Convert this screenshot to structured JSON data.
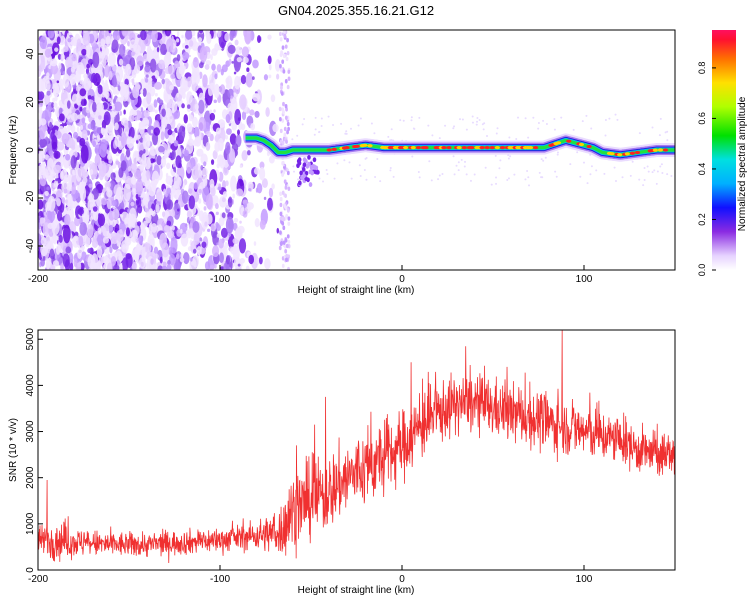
{
  "title": "GN04.2025.355.16.21.G12",
  "chart_data": [
    {
      "type": "heatmap",
      "xlabel": "Height of straight line (km)",
      "ylabel": "Frequency (Hz)",
      "xlim": [
        -200,
        150
      ],
      "ylim": [
        -50,
        50
      ],
      "xticks": [
        -200,
        -100,
        0,
        100
      ],
      "yticks": [
        -40,
        -20,
        0,
        20,
        40
      ],
      "colorbar_label": "Normalized spectral amplitude",
      "colorbar_ticks": [
        "0.0",
        "0.2",
        "0.4",
        "0.6",
        "0.8"
      ],
      "colorbar_range": [
        0,
        0.95
      ],
      "noise_region": {
        "x": [
          -200,
          -65
        ],
        "y": [
          -50,
          50
        ]
      },
      "ridge": {
        "x": [
          -86,
          -80,
          -76,
          -72,
          -68,
          -64,
          -60,
          -55,
          -50,
          -40,
          -30,
          -20,
          -10,
          0,
          10,
          20,
          30,
          40,
          50,
          60,
          70,
          78,
          82,
          86,
          90,
          95,
          100,
          105,
          110,
          120,
          130,
          140,
          150
        ],
        "freq": [
          5,
          5,
          4,
          2,
          -1,
          -1,
          0,
          0,
          0,
          0,
          1,
          2,
          1,
          1,
          1,
          1,
          1,
          1,
          1,
          1,
          1,
          1,
          2,
          3,
          4,
          3,
          2,
          1,
          -1,
          -2,
          -1,
          0,
          0
        ]
      }
    },
    {
      "type": "line",
      "xlabel": "Height of straight line (km)",
      "ylabel": "SNR (10 * v/v)",
      "xlim": [
        -200,
        150
      ],
      "ylim": [
        0,
        5200
      ],
      "xticks": [
        -200,
        -100,
        0,
        100
      ],
      "yticks": [
        0,
        1000,
        2000,
        3000,
        4000,
        5000
      ],
      "color": "#f03030",
      "envelope": {
        "x": [
          -200,
          -190,
          -180,
          -160,
          -140,
          -120,
          -100,
          -90,
          -80,
          -70,
          -65,
          -60,
          -50,
          -40,
          -30,
          -20,
          -10,
          0,
          10,
          20,
          30,
          40,
          50,
          60,
          70,
          80,
          90,
          100,
          110,
          120,
          130,
          140,
          150
        ],
        "mean": [
          600,
          650,
          600,
          550,
          550,
          600,
          650,
          700,
          750,
          800,
          900,
          1300,
          1500,
          1700,
          2000,
          2200,
          2400,
          2700,
          3100,
          3400,
          3600,
          3600,
          3500,
          3400,
          3300,
          3200,
          3100,
          3000,
          2900,
          2800,
          2600,
          2500,
          2500
        ],
        "spread": [
          350,
          500,
          350,
          300,
          300,
          300,
          300,
          300,
          350,
          500,
          700,
          900,
          900,
          900,
          900,
          900,
          850,
          850,
          800,
          750,
          700,
          700,
          700,
          700,
          700,
          700,
          650,
          650,
          600,
          550,
          550,
          550,
          500
        ]
      },
      "spikes": [
        {
          "x": -195,
          "y": 1950
        },
        {
          "x": -62,
          "y": 1750
        },
        {
          "x": -58,
          "y": 2700
        },
        {
          "x": -48,
          "y": 3150
        },
        {
          "x": -42,
          "y": 3750
        },
        {
          "x": 5,
          "y": 4500
        },
        {
          "x": 35,
          "y": 4850
        },
        {
          "x": 88,
          "y": 5200
        },
        {
          "x": 148,
          "y": 2600
        }
      ]
    }
  ]
}
